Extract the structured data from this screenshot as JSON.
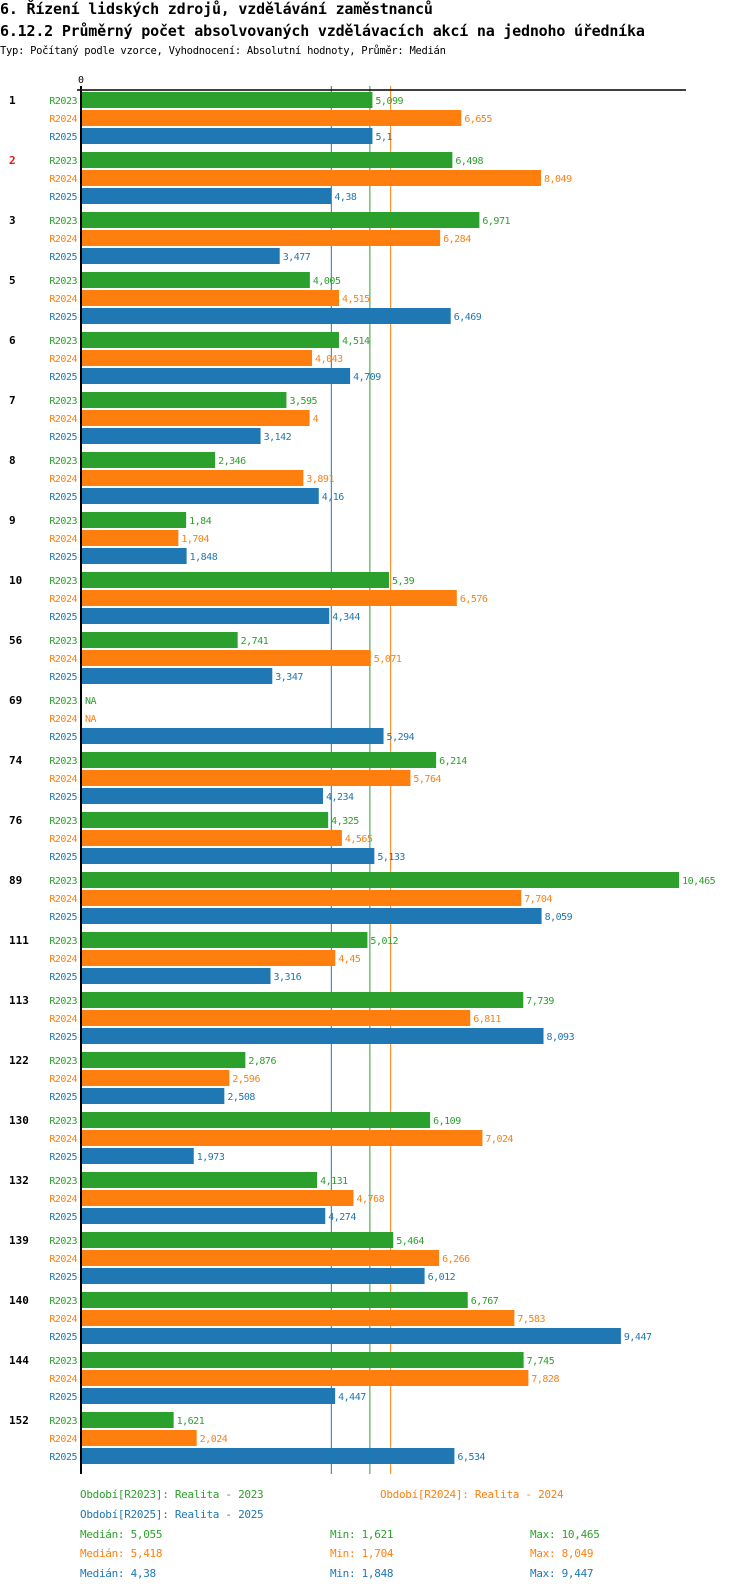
{
  "header": {
    "title": "6. Řízení lidských zdrojů, vzdělávání zaměstnanců",
    "subtitle": "6.12.2 Průměrný počet absolvovaných vzdělávacích akcí na jednoho úředníka",
    "info": "Typ: Počítaný podle vzorce, Vyhodnocení: Absolutní hodnoty, Průměr: Medián"
  },
  "colors": {
    "R2023": "#2ca02c",
    "R2024": "#ff7f0e",
    "R2025": "#1f77b4",
    "highlight_label": "#e31a1c",
    "axis": "#000000"
  },
  "chart_data": {
    "type": "bar",
    "orientation": "horizontal",
    "title": "6.12.2 Průměrný počet absolvovaných vzdělávacích akcí na jednoho úředníka",
    "xlabel": "",
    "ylabel": "",
    "x_tick_labels": [
      "0"
    ],
    "xlim": [
      0,
      10.465
    ],
    "grid": false,
    "decimal_separator": ",",
    "categories": [
      "1",
      "2",
      "3",
      "5",
      "6",
      "7",
      "8",
      "9",
      "10",
      "56",
      "69",
      "74",
      "76",
      "89",
      "111",
      "113",
      "122",
      "130",
      "132",
      "139",
      "140",
      "144",
      "152"
    ],
    "highlighted_categories": [
      "2"
    ],
    "series": [
      {
        "name": "R2023",
        "values": [
          5.099,
          6.498,
          6.971,
          4.005,
          4.514,
          3.595,
          2.346,
          1.84,
          5.39,
          2.741,
          null,
          6.214,
          4.325,
          10.465,
          5.012,
          7.739,
          2.876,
          6.109,
          4.131,
          5.464,
          6.767,
          7.745,
          1.621
        ],
        "labels": [
          "5,099",
          "6,498",
          "6,971",
          "4,005",
          "4,514",
          "3,595",
          "2,346",
          "1,84",
          "5,39",
          "2,741",
          "NA",
          "6,214",
          "4,325",
          "10,465",
          "5,012",
          "7,739",
          "2,876",
          "6,109",
          "4,131",
          "5,464",
          "6,767",
          "7,745",
          "1,621"
        ]
      },
      {
        "name": "R2024",
        "values": [
          6.655,
          8.049,
          6.284,
          4.515,
          4.043,
          4,
          3.891,
          1.704,
          6.576,
          5.071,
          null,
          5.764,
          4.565,
          7.704,
          4.45,
          6.811,
          2.596,
          7.024,
          4.768,
          6.266,
          7.583,
          7.828,
          2.024
        ],
        "labels": [
          "6,655",
          "8,049",
          "6,284",
          "4,515",
          "4,043",
          "4",
          "3,891",
          "1,704",
          "6,576",
          "5,071",
          "NA",
          "5,764",
          "4,565",
          "7,704",
          "4,45",
          "6,811",
          "2,596",
          "7,024",
          "4,768",
          "6,266",
          "7,583",
          "7,828",
          "2,024"
        ]
      },
      {
        "name": "R2025",
        "values": [
          5.1,
          4.38,
          3.477,
          6.469,
          4.709,
          3.142,
          4.16,
          1.848,
          4.344,
          3.347,
          5.294,
          4.234,
          5.133,
          8.059,
          3.316,
          8.093,
          2.508,
          1.973,
          4.274,
          6.012,
          9.447,
          4.447,
          6.534
        ],
        "labels": [
          "5,1",
          "4,38",
          "3,477",
          "6,469",
          "4,709",
          "3,142",
          "4,16",
          "1,848",
          "4,344",
          "3,347",
          "5,294",
          "4,234",
          "5,133",
          "8,059",
          "3,316",
          "8,093",
          "2,508",
          "1,973",
          "4,274",
          "6,012",
          "9,447",
          "4,447",
          "6,534"
        ]
      }
    ],
    "reference_lines": [
      {
        "series": "R2023",
        "type": "median",
        "value": 5.055
      },
      {
        "series": "R2024",
        "type": "median",
        "value": 5.418
      },
      {
        "series": "R2025",
        "type": "median",
        "value": 4.38
      }
    ],
    "legend_placement": "bottom"
  },
  "legend": {
    "periods": [
      {
        "key": "R2023",
        "text": "Období[R2023]: Realita - 2023"
      },
      {
        "key": "R2024",
        "text": "Období[R2024]: Realita - 2024"
      },
      {
        "key": "R2025",
        "text": "Období[R2025]: Realita - 2025"
      }
    ],
    "stats": [
      {
        "key": "R2023",
        "median": "Medián: 5,055",
        "min": "Min: 1,621",
        "max": "Max: 10,465"
      },
      {
        "key": "R2024",
        "median": "Medián: 5,418",
        "min": "Min: 1,704",
        "max": "Max: 8,049"
      },
      {
        "key": "R2025",
        "median": "Medián: 4,38",
        "min": "Min: 1,848",
        "max": "Max: 9,447"
      }
    ]
  }
}
